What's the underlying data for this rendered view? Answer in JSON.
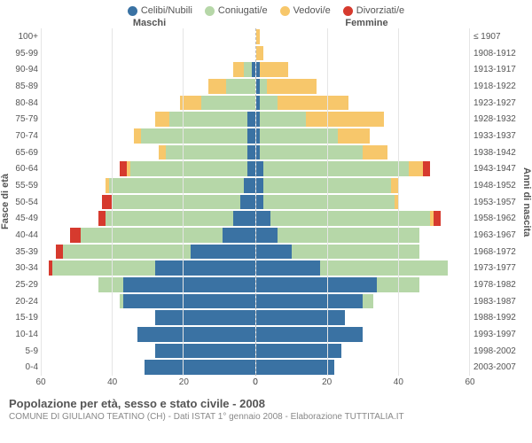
{
  "legend": [
    {
      "label": "Celibi/Nubili",
      "color": "#3a72a3"
    },
    {
      "label": "Coniugati/e",
      "color": "#b6d7a8"
    },
    {
      "label": "Vedovi/e",
      "color": "#f7c76b"
    },
    {
      "label": "Divorziati/e",
      "color": "#d63a2e"
    }
  ],
  "headers": {
    "male": "Maschi",
    "female": "Femmine"
  },
  "y_left_title": "Fasce di età",
  "y_right_title": "Anni di nascita",
  "age_labels": [
    "100+",
    "95-99",
    "90-94",
    "85-89",
    "80-84",
    "75-79",
    "70-74",
    "65-69",
    "60-64",
    "55-59",
    "50-54",
    "45-49",
    "40-44",
    "35-39",
    "30-34",
    "25-29",
    "20-24",
    "15-19",
    "10-14",
    "5-9",
    "0-4"
  ],
  "birth_labels": [
    "≤ 1907",
    "1908-1912",
    "1913-1917",
    "1918-1922",
    "1923-1927",
    "1928-1932",
    "1933-1937",
    "1938-1942",
    "1943-1947",
    "1948-1952",
    "1953-1957",
    "1958-1962",
    "1963-1967",
    "1968-1972",
    "1973-1977",
    "1978-1982",
    "1983-1987",
    "1988-1992",
    "1993-1997",
    "1998-2002",
    "2003-2007"
  ],
  "x_max": 60,
  "x_ticks": [
    60,
    40,
    20,
    0,
    20,
    40,
    60
  ],
  "colors": {
    "celibi": "#3a72a3",
    "coniugati": "#b6d7a8",
    "vedovi": "#f7c76b",
    "divorziati": "#d63a2e",
    "grid": "#e5e5e5",
    "bg": "#ffffff"
  },
  "male": [
    {
      "c": 0,
      "m": 0,
      "w": 0,
      "d": 0
    },
    {
      "c": 0,
      "m": 0,
      "w": 0,
      "d": 0
    },
    {
      "c": 1,
      "m": 2,
      "w": 3,
      "d": 0
    },
    {
      "c": 0,
      "m": 8,
      "w": 5,
      "d": 0
    },
    {
      "c": 0,
      "m": 15,
      "w": 6,
      "d": 0
    },
    {
      "c": 2,
      "m": 22,
      "w": 4,
      "d": 0
    },
    {
      "c": 2,
      "m": 30,
      "w": 2,
      "d": 0
    },
    {
      "c": 2,
      "m": 23,
      "w": 2,
      "d": 0
    },
    {
      "c": 2,
      "m": 33,
      "w": 1,
      "d": 2
    },
    {
      "c": 3,
      "m": 38,
      "w": 1,
      "d": 0
    },
    {
      "c": 4,
      "m": 36,
      "w": 0,
      "d": 3
    },
    {
      "c": 6,
      "m": 36,
      "w": 0,
      "d": 2
    },
    {
      "c": 9,
      "m": 40,
      "w": 0,
      "d": 3
    },
    {
      "c": 18,
      "m": 36,
      "w": 0,
      "d": 2
    },
    {
      "c": 28,
      "m": 29,
      "w": 0,
      "d": 1
    },
    {
      "c": 37,
      "m": 7,
      "w": 0,
      "d": 0
    },
    {
      "c": 37,
      "m": 1,
      "w": 0,
      "d": 0
    },
    {
      "c": 28,
      "m": 0,
      "w": 0,
      "d": 0
    },
    {
      "c": 33,
      "m": 0,
      "w": 0,
      "d": 0
    },
    {
      "c": 28,
      "m": 0,
      "w": 0,
      "d": 0
    },
    {
      "c": 31,
      "m": 0,
      "w": 0,
      "d": 0
    }
  ],
  "female": [
    {
      "c": 0,
      "m": 0,
      "w": 1,
      "d": 0
    },
    {
      "c": 0,
      "m": 0,
      "w": 2,
      "d": 0
    },
    {
      "c": 1,
      "m": 0,
      "w": 8,
      "d": 0
    },
    {
      "c": 1,
      "m": 2,
      "w": 14,
      "d": 0
    },
    {
      "c": 1,
      "m": 5,
      "w": 20,
      "d": 0
    },
    {
      "c": 1,
      "m": 13,
      "w": 22,
      "d": 0
    },
    {
      "c": 1,
      "m": 22,
      "w": 9,
      "d": 0
    },
    {
      "c": 1,
      "m": 29,
      "w": 7,
      "d": 0
    },
    {
      "c": 2,
      "m": 41,
      "w": 4,
      "d": 2
    },
    {
      "c": 2,
      "m": 36,
      "w": 2,
      "d": 0
    },
    {
      "c": 2,
      "m": 37,
      "w": 1,
      "d": 0
    },
    {
      "c": 4,
      "m": 45,
      "w": 1,
      "d": 2
    },
    {
      "c": 6,
      "m": 40,
      "w": 0,
      "d": 0
    },
    {
      "c": 10,
      "m": 36,
      "w": 0,
      "d": 0
    },
    {
      "c": 18,
      "m": 36,
      "w": 0,
      "d": 0
    },
    {
      "c": 34,
      "m": 12,
      "w": 0,
      "d": 0
    },
    {
      "c": 30,
      "m": 3,
      "w": 0,
      "d": 0
    },
    {
      "c": 25,
      "m": 0,
      "w": 0,
      "d": 0
    },
    {
      "c": 30,
      "m": 0,
      "w": 0,
      "d": 0
    },
    {
      "c": 24,
      "m": 0,
      "w": 0,
      "d": 0
    },
    {
      "c": 22,
      "m": 0,
      "w": 0,
      "d": 0
    }
  ],
  "title": "Popolazione per età, sesso e stato civile - 2008",
  "subtitle": "COMUNE DI GIULIANO TEATINO (CH) - Dati ISTAT 1° gennaio 2008 - Elaborazione TUTTITALIA.IT"
}
